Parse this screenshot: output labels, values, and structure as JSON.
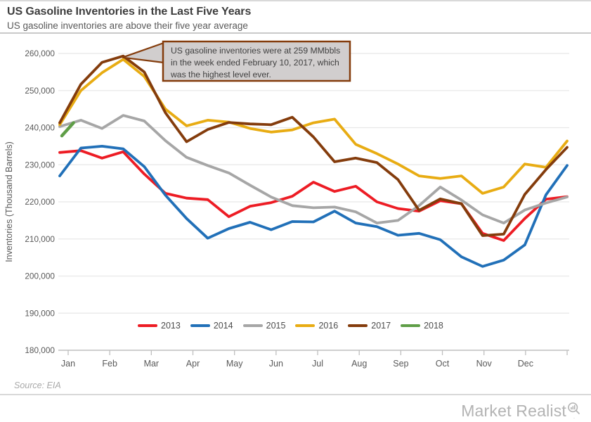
{
  "header": {
    "title": "US Gasoline Inventories in the Last Five Years",
    "subtitle": "US gasoline inventories are above their five year average"
  },
  "annotation": {
    "lines": [
      "US gasoline inventories were at 259 MMbbls",
      "in the week ended February 10, 2017, which",
      "was the highest level ever."
    ],
    "border_color": "#843c0c",
    "fill_color": "#d1cece",
    "text_color": "#404040"
  },
  "chart_data": {
    "type": "line",
    "title": "US Gasoline Inventories in the Last Five Years",
    "xlabel": "",
    "ylabel": "Inventories (Thousand Barrels)",
    "ylim": [
      180000,
      260000
    ],
    "ytick_step": 10000,
    "grid": true,
    "legend_position": "bottom",
    "x_tick_labels": [
      "Jan",
      "Feb",
      "Mar",
      "Apr",
      "May",
      "Jun",
      "Jul",
      "Aug",
      "Sep",
      "Oct",
      "Nov",
      "Dec"
    ],
    "x_unit": "semi-monthly index, 0 = early Jan, 24 = end of Dec",
    "series": [
      {
        "name": "2013",
        "color": "#ed1c24",
        "values": [
          233300,
          233800,
          231800,
          233500,
          227500,
          222300,
          221000,
          220600,
          216000,
          218800,
          219800,
          221500,
          225300,
          222800,
          224200,
          220000,
          218200,
          217500,
          220300,
          219500,
          211500,
          209600,
          215500,
          220700,
          221400
        ]
      },
      {
        "name": "2014",
        "color": "#2170b8",
        "values": [
          227000,
          234500,
          235000,
          234300,
          229500,
          221800,
          215500,
          210200,
          212800,
          214500,
          212500,
          214700,
          214600,
          217500,
          214300,
          213300,
          211000,
          211500,
          209800,
          205200,
          202600,
          204300,
          208400,
          221900,
          229800
        ]
      },
      {
        "name": "2015",
        "color": "#a6a6a6",
        "values": [
          240300,
          242000,
          239800,
          243300,
          241800,
          236500,
          232000,
          229800,
          227800,
          224500,
          221300,
          219000,
          218400,
          218600,
          217300,
          214300,
          215000,
          219000,
          224000,
          220500,
          216500,
          214300,
          217800,
          219700,
          221300
        ]
      },
      {
        "name": "2016",
        "color": "#e8ac13",
        "values": [
          240800,
          250000,
          254800,
          258400,
          253800,
          245000,
          240500,
          242000,
          241500,
          239800,
          238800,
          239400,
          241300,
          242300,
          235500,
          233000,
          230200,
          227000,
          226300,
          227000,
          222300,
          224000,
          230200,
          229300,
          236400
        ]
      },
      {
        "name": "2017",
        "color": "#843c0c",
        "values": [
          241300,
          251700,
          257600,
          259300,
          255000,
          244000,
          236200,
          239500,
          241400,
          241000,
          240800,
          242800,
          237500,
          230800,
          231800,
          230600,
          226000,
          217700,
          220800,
          219500,
          210900,
          211300,
          222000,
          228700,
          234700
        ]
      },
      {
        "name": "2018",
        "color": "#5f9e47",
        "x_idx": [
          0.1,
          0.65
        ],
        "values": [
          237800,
          241300
        ]
      }
    ],
    "annotation_text": "US gasoline inventories were at 259 MMbbls in the week ended February 10, 2017, which was the highest level ever.",
    "annotation_points_to": {
      "series": "2017",
      "value": 259000,
      "week_of": "February 10, 2017"
    }
  },
  "footer": {
    "source": "Source: EIA",
    "brand": "Market Realist"
  },
  "icons": {
    "brand_magnifier": "magnifier-with-bar-chart-icon"
  },
  "colors": {
    "gridline": "#e8e8e8",
    "axis": "#bfbfbf",
    "tick_label": "#595959",
    "title": "#3d3d3d",
    "subtitle": "#595959"
  }
}
